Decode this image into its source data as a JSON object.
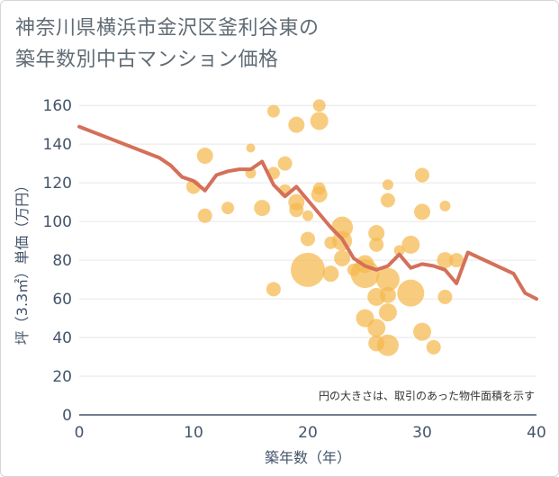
{
  "title_line1": "神奈川県横浜市金沢区釜利谷東の",
  "title_line2": "築年数別中古マンション価格",
  "chart_data": {
    "type": "scatter",
    "xlabel": "築年数（年）",
    "ylabel": "坪（3.3㎡）単価（万円）",
    "xlim": [
      0,
      40
    ],
    "ylim": [
      0,
      168
    ],
    "xticks": [
      0,
      10,
      20,
      30,
      40
    ],
    "yticks": [
      0,
      20,
      40,
      60,
      80,
      100,
      120,
      140,
      160
    ],
    "note": "円の大きさは、取引のあった物件面積を示す",
    "bubble_color": "#f5b94e",
    "line_color": "#d4705a",
    "points": [
      {
        "x": 10,
        "y": 118,
        "s": 8
      },
      {
        "x": 11,
        "y": 134,
        "s": 9
      },
      {
        "x": 11,
        "y": 103,
        "s": 8
      },
      {
        "x": 13,
        "y": 107,
        "s": 7
      },
      {
        "x": 15,
        "y": 138,
        "s": 5
      },
      {
        "x": 15,
        "y": 125,
        "s": 6
      },
      {
        "x": 16,
        "y": 107,
        "s": 9
      },
      {
        "x": 17,
        "y": 157,
        "s": 7
      },
      {
        "x": 17,
        "y": 125,
        "s": 7
      },
      {
        "x": 17,
        "y": 65,
        "s": 8
      },
      {
        "x": 18,
        "y": 130,
        "s": 8
      },
      {
        "x": 18,
        "y": 116,
        "s": 7
      },
      {
        "x": 19,
        "y": 150,
        "s": 9
      },
      {
        "x": 19,
        "y": 110,
        "s": 9
      },
      {
        "x": 19,
        "y": 106,
        "s": 8
      },
      {
        "x": 20,
        "y": 103,
        "s": 6
      },
      {
        "x": 20,
        "y": 91,
        "s": 8
      },
      {
        "x": 20,
        "y": 75,
        "s": 19
      },
      {
        "x": 21,
        "y": 160,
        "s": 7
      },
      {
        "x": 21,
        "y": 152,
        "s": 10
      },
      {
        "x": 21,
        "y": 117,
        "s": 7
      },
      {
        "x": 21,
        "y": 114,
        "s": 9
      },
      {
        "x": 22,
        "y": 89,
        "s": 7
      },
      {
        "x": 22,
        "y": 73,
        "s": 9
      },
      {
        "x": 23,
        "y": 97,
        "s": 12
      },
      {
        "x": 23,
        "y": 90,
        "s": 11
      },
      {
        "x": 23,
        "y": 81,
        "s": 9
      },
      {
        "x": 24,
        "y": 75,
        "s": 7
      },
      {
        "x": 25,
        "y": 78,
        "s": 10
      },
      {
        "x": 25,
        "y": 73,
        "s": 16
      },
      {
        "x": 25,
        "y": 50,
        "s": 10
      },
      {
        "x": 26,
        "y": 94,
        "s": 9
      },
      {
        "x": 26,
        "y": 88,
        "s": 8
      },
      {
        "x": 26,
        "y": 61,
        "s": 10
      },
      {
        "x": 26,
        "y": 45,
        "s": 10
      },
      {
        "x": 26,
        "y": 37,
        "s": 9
      },
      {
        "x": 27,
        "y": 119,
        "s": 6
      },
      {
        "x": 27,
        "y": 111,
        "s": 8
      },
      {
        "x": 27,
        "y": 70,
        "s": 13
      },
      {
        "x": 27,
        "y": 62,
        "s": 9
      },
      {
        "x": 27,
        "y": 53,
        "s": 10
      },
      {
        "x": 27,
        "y": 36,
        "s": 12
      },
      {
        "x": 28,
        "y": 85,
        "s": 6
      },
      {
        "x": 29,
        "y": 88,
        "s": 10
      },
      {
        "x": 29,
        "y": 63,
        "s": 15
      },
      {
        "x": 30,
        "y": 124,
        "s": 8
      },
      {
        "x": 30,
        "y": 105,
        "s": 9
      },
      {
        "x": 30,
        "y": 43,
        "s": 10
      },
      {
        "x": 31,
        "y": 35,
        "s": 8
      },
      {
        "x": 32,
        "y": 108,
        "s": 6
      },
      {
        "x": 32,
        "y": 80,
        "s": 9
      },
      {
        "x": 32,
        "y": 61,
        "s": 8
      },
      {
        "x": 33,
        "y": 80,
        "s": 8
      }
    ],
    "line": [
      {
        "x": 0,
        "y": 149
      },
      {
        "x": 7,
        "y": 133
      },
      {
        "x": 8,
        "y": 129
      },
      {
        "x": 9,
        "y": 123
      },
      {
        "x": 10,
        "y": 121
      },
      {
        "x": 11,
        "y": 116
      },
      {
        "x": 12,
        "y": 124
      },
      {
        "x": 13,
        "y": 126
      },
      {
        "x": 14,
        "y": 127
      },
      {
        "x": 15,
        "y": 127
      },
      {
        "x": 16,
        "y": 131
      },
      {
        "x": 17,
        "y": 119
      },
      {
        "x": 18,
        "y": 113
      },
      {
        "x": 19,
        "y": 118
      },
      {
        "x": 20,
        "y": 111
      },
      {
        "x": 21,
        "y": 104
      },
      {
        "x": 22,
        "y": 97
      },
      {
        "x": 23,
        "y": 91
      },
      {
        "x": 24,
        "y": 81
      },
      {
        "x": 25,
        "y": 77
      },
      {
        "x": 26,
        "y": 75
      },
      {
        "x": 27,
        "y": 77
      },
      {
        "x": 28,
        "y": 83
      },
      {
        "x": 29,
        "y": 76
      },
      {
        "x": 30,
        "y": 78
      },
      {
        "x": 31,
        "y": 77
      },
      {
        "x": 32,
        "y": 75
      },
      {
        "x": 33,
        "y": 68
      },
      {
        "x": 34,
        "y": 84
      },
      {
        "x": 38,
        "y": 73
      },
      {
        "x": 39,
        "y": 63
      },
      {
        "x": 40,
        "y": 60
      }
    ]
  }
}
